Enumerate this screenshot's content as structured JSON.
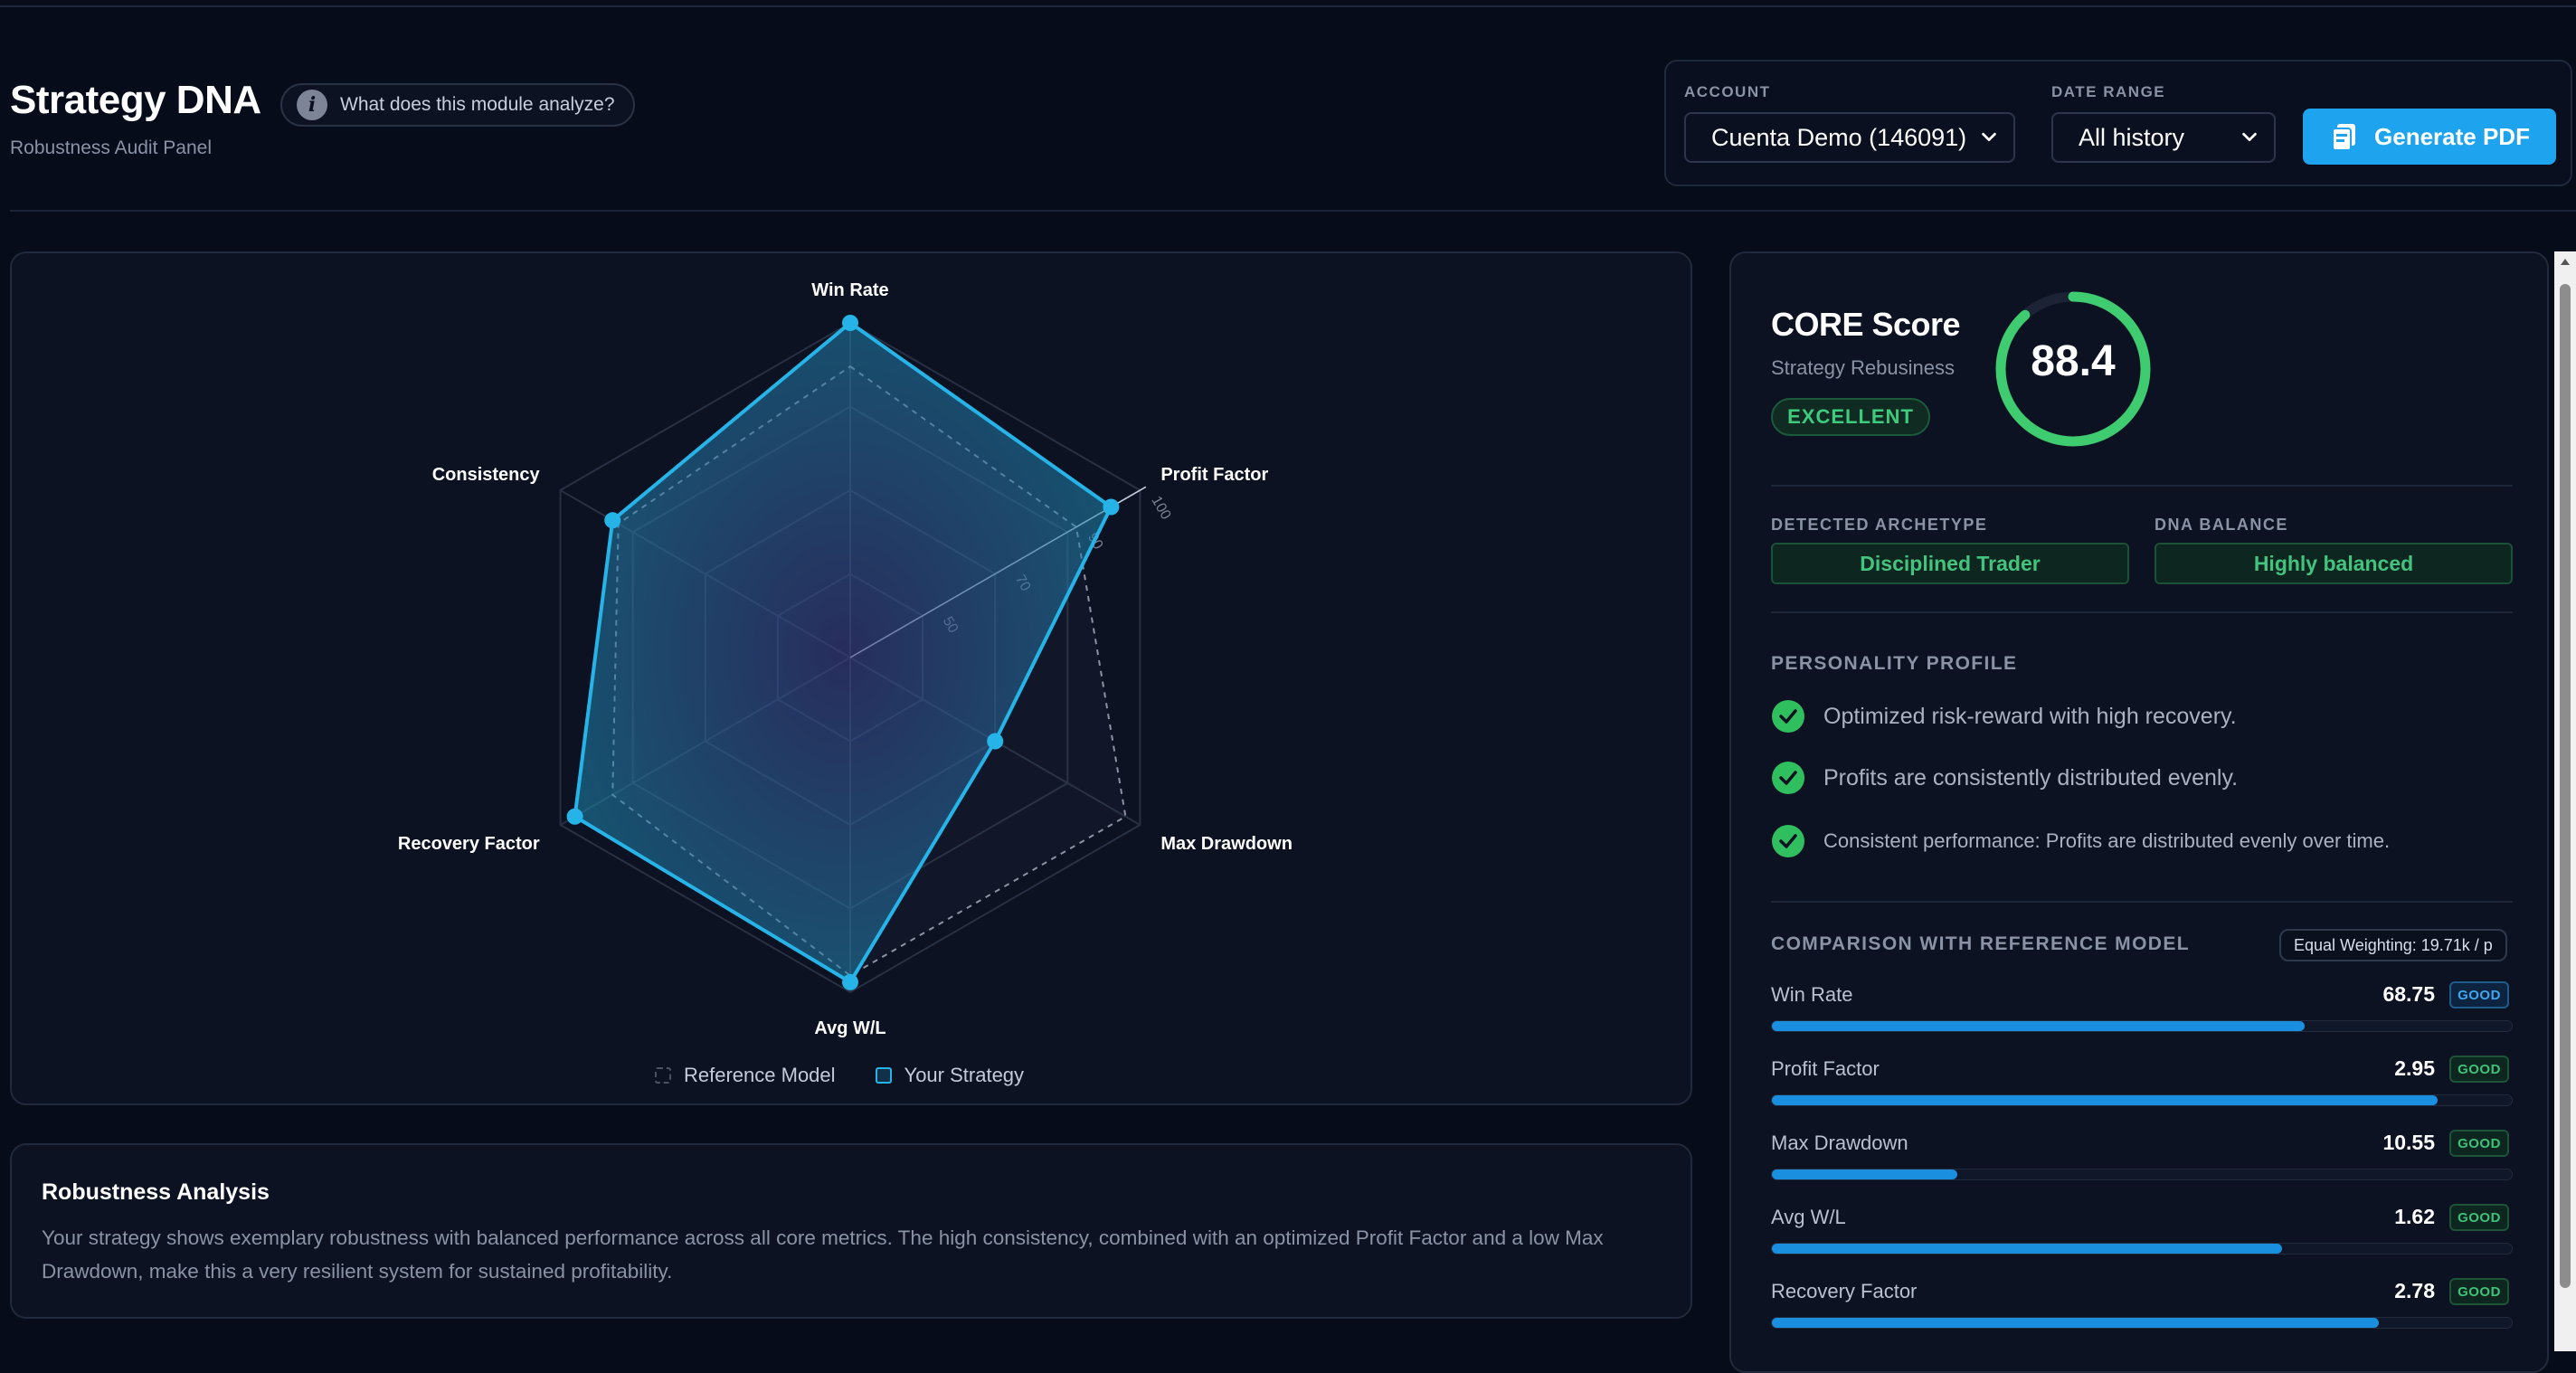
{
  "header": {
    "title": "Strategy DNA",
    "subtitle": "Robustness Audit Panel",
    "info_label": "What does this module analyze?",
    "info_glyph": "i"
  },
  "controls": {
    "account_label": "ACCOUNT",
    "account_value": "Cuenta Demo (146091)",
    "date_label": "DATE RANGE",
    "date_value": "All history",
    "pdf_button": "Generate PDF"
  },
  "chart_data": {
    "type": "radar",
    "axes": [
      "Win Rate",
      "Profit Factor",
      "Max Drawdown",
      "Avg W/L",
      "Recovery Factor",
      "Consistency"
    ],
    "r_ticks": [
      "50",
      "70",
      "90",
      "100"
    ],
    "series": [
      {
        "name": "Reference Model",
        "values": [
          87,
          78,
          95,
          95,
          82,
          80
        ],
        "color": "#8b93a3",
        "style": "dashed"
      },
      {
        "name": "Your Strategy",
        "values": [
          100,
          90,
          50,
          97,
          95,
          82
        ],
        "color": "#26b4e8",
        "style": "solid"
      }
    ],
    "legend": [
      "Reference Model",
      "Your Strategy"
    ]
  },
  "analysis": {
    "title": "Robustness Analysis",
    "text": "Your strategy shows exemplary robustness with balanced performance across all core metrics. The high consistency, combined with an optimized Profit Factor and a low Max Drawdown, make this a very resilient system for sustained profitability."
  },
  "core": {
    "title": "CORE Score",
    "subtitle": "Strategy Rebusiness",
    "badge": "EXCELLENT",
    "score": "88.4",
    "score_fraction": 0.884,
    "gauge_color": "#3fcb6f"
  },
  "archetype": {
    "label": "DETECTED ARCHETYPE",
    "value": "Disciplined Trader",
    "balance_label": "DNA BALANCE",
    "balance_value": "Highly balanced"
  },
  "personality": {
    "title": "PERSONALITY PROFILE",
    "items": [
      "Optimized risk-reward with high recovery.",
      "Profits are consistently distributed evenly.",
      "Consistent performance: Profits are distributed evenly over time."
    ]
  },
  "comparison": {
    "title": "COMPARISON WITH REFERENCE MODEL",
    "weighting": "Equal Weighting: 19.71k / p",
    "metrics": [
      {
        "label": "Win Rate",
        "value": "68.75",
        "badge": "GOOD",
        "badge_color": "blue",
        "fill": 0.72
      },
      {
        "label": "Profit Factor",
        "value": "2.95",
        "badge": "GOOD",
        "badge_color": "green",
        "fill": 0.9
      },
      {
        "label": "Max Drawdown",
        "value": "10.55",
        "badge": "GOOD",
        "badge_color": "green",
        "fill": 0.25
      },
      {
        "label": "Avg W/L",
        "value": "1.62",
        "badge": "GOOD",
        "badge_color": "green",
        "fill": 0.69
      },
      {
        "label": "Recovery Factor",
        "value": "2.78",
        "badge": "GOOD",
        "badge_color": "green",
        "fill": 0.82
      }
    ]
  }
}
